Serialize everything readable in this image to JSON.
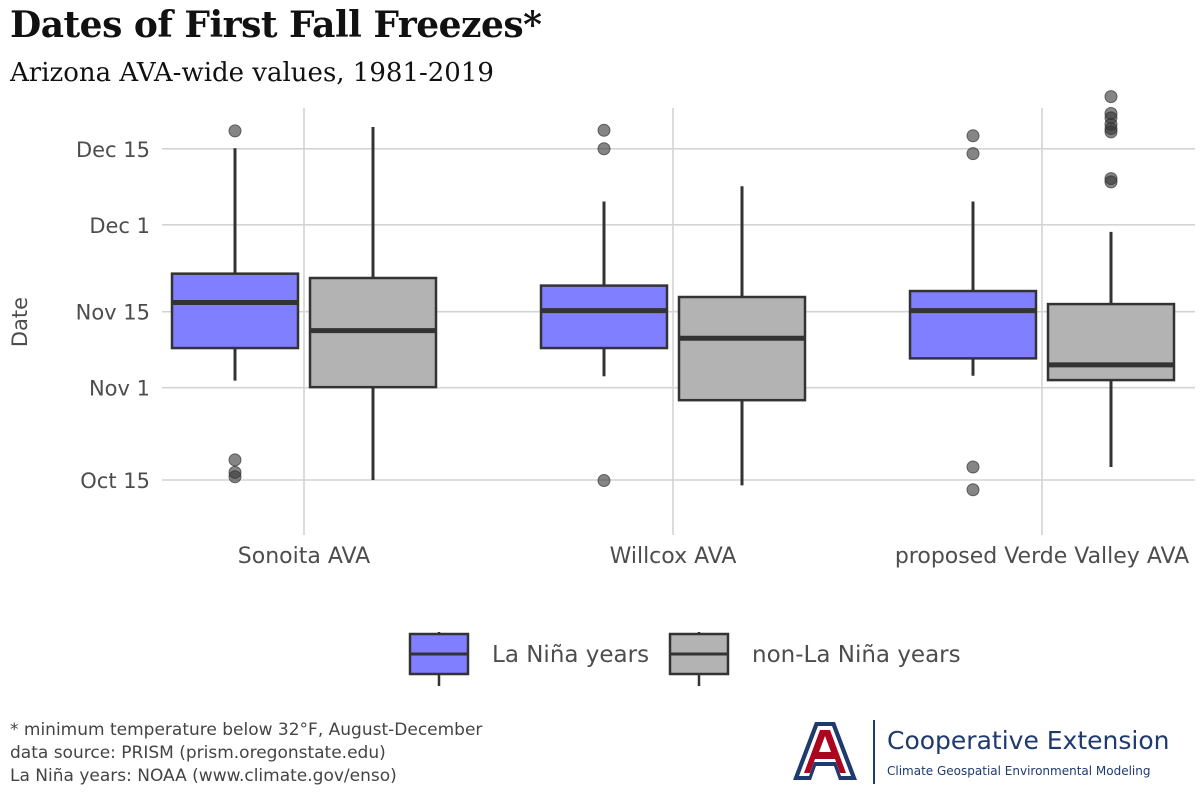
{
  "title": "Dates of First Fall Freezes*",
  "subtitle": "Arizona AVA-wide values, 1981-2019",
  "footnotes": [
    "* minimum temperature below 32°F, August-December",
    "data source: PRISM (prism.oregonstate.edu)",
    "La Niña years: NOAA (www.climate.gov/enso)"
  ],
  "logo": {
    "title": "Cooperative Extension",
    "subtitle": "Climate Geospatial Environmental Modeling",
    "mark_letter": "A",
    "brand_colors": {
      "navy": "#1e3a6e",
      "red": "#ab0520"
    }
  },
  "chart_data": {
    "type": "boxplot",
    "ylabel": "Date",
    "xlabel": "",
    "y_unit": "day of year",
    "yticks": [
      {
        "value": 288,
        "label": "Oct 15"
      },
      {
        "value": 305,
        "label": "Nov 1"
      },
      {
        "value": 319,
        "label": "Nov 15"
      },
      {
        "value": 335,
        "label": "Dec 1"
      },
      {
        "value": 349,
        "label": "Dec 15"
      }
    ],
    "ylim": [
      280.6,
      359.5
    ],
    "categories": [
      "Sonoita AVA",
      "Willcox AVA",
      "proposed Verde Valley AVA"
    ],
    "legend": {
      "placement": "bottom"
    },
    "grid": true,
    "series": [
      {
        "name": "La Niña years",
        "color": "#7f7fff",
        "boxes": [
          {
            "min": 306.3,
            "q1": 312.3,
            "median": 320.7,
            "q3": 326.0,
            "max": 349.1,
            "outliers": [
              352.3,
              291.7,
              289.4,
              288.6
            ]
          },
          {
            "min": 307.1,
            "q1": 312.3,
            "median": 319.2,
            "q3": 323.8,
            "max": 339.3,
            "outliers": [
              352.4,
              349.0,
              287.9
            ]
          },
          {
            "min": 307.2,
            "q1": 310.4,
            "median": 319.2,
            "q3": 322.8,
            "max": 339.3,
            "outliers": [
              351.4,
              348.1,
              290.4,
              286.2
            ]
          }
        ]
      },
      {
        "name": "non-La Niña years",
        "color": "#b3b3b3",
        "boxes": [
          {
            "min": 288.0,
            "q1": 305.1,
            "median": 315.5,
            "q3": 325.2,
            "max": 353.0,
            "outliers": []
          },
          {
            "min": 287.0,
            "q1": 302.7,
            "median": 314.1,
            "q3": 321.7,
            "max": 342.1,
            "outliers": []
          },
          {
            "min": 290.4,
            "q1": 306.4,
            "median": 309.2,
            "q3": 320.4,
            "max": 333.7,
            "outliers": [
              358.6,
              355.5,
              354.7,
              353.5,
              352.7,
              352.1,
              343.5,
              342.9
            ]
          }
        ]
      }
    ]
  }
}
